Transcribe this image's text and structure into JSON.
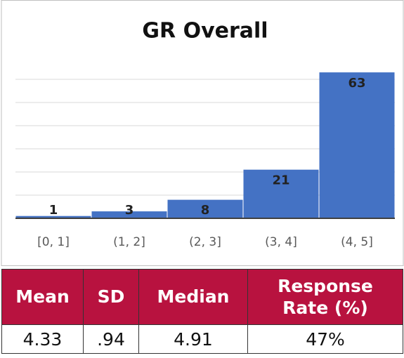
{
  "chart_data": {
    "type": "bar",
    "title": "GR Overall",
    "categories": [
      "[0, 1]",
      "(1, 2]",
      "(2, 3]",
      "(3, 4]",
      "(4, 5]"
    ],
    "values": [
      1,
      3,
      8,
      21,
      63
    ],
    "color": "#4472c4",
    "ylim": [
      0,
      70
    ],
    "yticks": [
      0,
      10,
      20,
      30,
      40,
      50,
      60
    ],
    "grid": true
  },
  "table": {
    "header": [
      "Mean",
      "SD",
      "Median",
      "Response Rate (%)"
    ],
    "rows": [
      [
        "4.33",
        ".94",
        "4.91",
        "47%"
      ]
    ]
  }
}
